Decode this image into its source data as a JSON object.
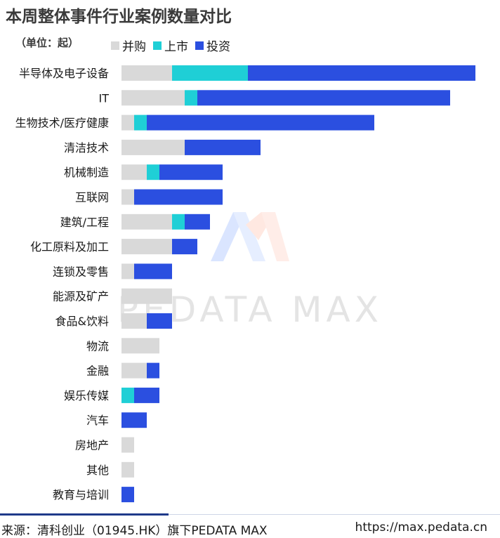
{
  "chart_data": {
    "type": "bar",
    "orientation": "horizontal",
    "stacked": true,
    "title": "本周整体事件行业案例数量对比",
    "unit_label": "（单位：起）",
    "categories": [
      "半导体及电子设备",
      "IT",
      "生物技术/医疗健康",
      "清洁技术",
      "机械制造",
      "互联网",
      "建筑/工程",
      "化工原料及加工",
      "连锁及零售",
      "能源及矿产",
      "食品&饮料",
      "物流",
      "金融",
      "娱乐传媒",
      "汽车",
      "房地产",
      "其他",
      "教育与培训"
    ],
    "series": [
      {
        "name": "并购",
        "color": "#d9d9d9",
        "values": [
          4,
          5,
          1,
          5,
          2,
          1,
          4,
          4,
          1,
          4,
          2,
          3,
          2,
          0,
          0,
          1,
          1,
          0
        ]
      },
      {
        "name": "上市",
        "color": "#1fcfd6",
        "values": [
          6,
          1,
          1,
          0,
          1,
          0,
          1,
          0,
          0,
          0,
          0,
          0,
          0,
          1,
          0,
          0,
          0,
          0
        ]
      },
      {
        "name": "投资",
        "color": "#2b4fe0",
        "values": [
          18,
          20,
          18,
          6,
          5,
          7,
          2,
          2,
          3,
          0,
          2,
          0,
          1,
          2,
          2,
          0,
          0,
          1
        ]
      }
    ],
    "legend_position": "top",
    "grid": false
  },
  "watermark": "PEDATA MAX",
  "footer": {
    "source": "来源：清科创业（01945.HK）旗下PEDATA MAX",
    "url": "https://max.pedata.cn"
  }
}
